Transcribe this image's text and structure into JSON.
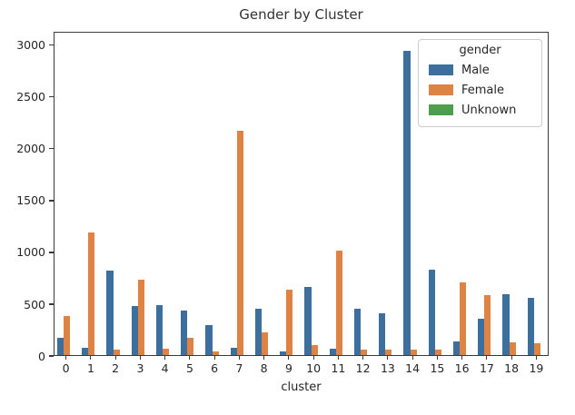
{
  "figure": {
    "title": "Gender by Cluster",
    "xlabel": "cluster",
    "legend_title": "gender"
  },
  "chart_data": {
    "type": "bar",
    "title": "Gender by Cluster",
    "xlabel": "cluster",
    "ylabel": "",
    "categories": [
      "0",
      "1",
      "2",
      "3",
      "4",
      "5",
      "6",
      "7",
      "8",
      "9",
      "10",
      "11",
      "12",
      "13",
      "14",
      "15",
      "16",
      "17",
      "18",
      "19"
    ],
    "series": [
      {
        "name": "Male",
        "color": "#3c6e9e",
        "values": [
          165,
          70,
          825,
          480,
          485,
          435,
          295,
          70,
          455,
          40,
          660,
          60,
          450,
          410,
          2960,
          830,
          130,
          355,
          595,
          555
        ]
      },
      {
        "name": "Female",
        "color": "#de8344",
        "values": [
          380,
          1195,
          50,
          730,
          60,
          165,
          35,
          2180,
          225,
          635,
          100,
          1020,
          55,
          50,
          50,
          50,
          710,
          580,
          125,
          115
        ]
      },
      {
        "name": "Unknown",
        "color": "#4e9e4e",
        "values": [
          0,
          0,
          0,
          0,
          0,
          0,
          0,
          0,
          0,
          0,
          0,
          0,
          0,
          0,
          0,
          0,
          0,
          0,
          0,
          0
        ]
      }
    ],
    "ylim": [
      0,
      3130
    ],
    "yticks": [
      0,
      500,
      1000,
      1500,
      2000,
      2500,
      3000
    ],
    "grid": false,
    "legend_position": "upper right",
    "legend_title": "gender"
  }
}
